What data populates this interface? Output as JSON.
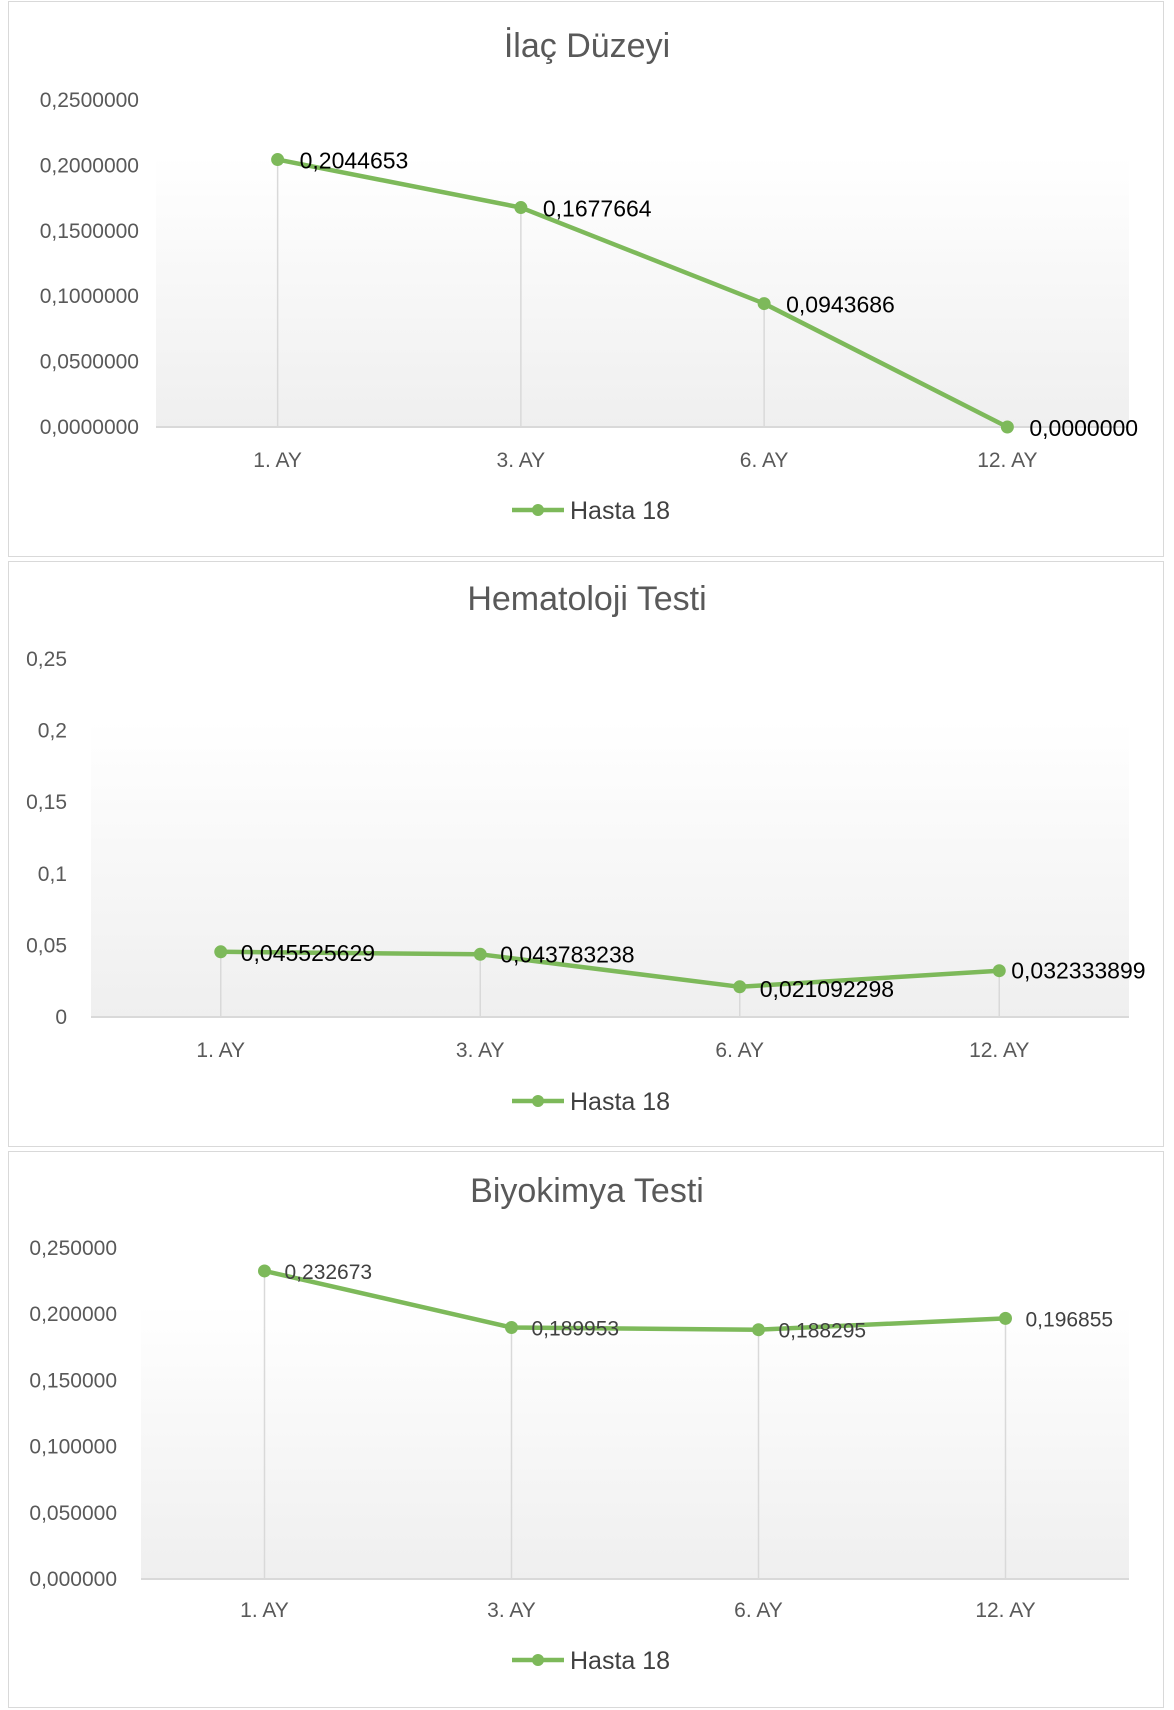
{
  "colors": {
    "series": "#7DB95A",
    "marker": "#7DB95A",
    "plot_top": "#ffffff",
    "plot_bottom": "#efefef",
    "axis": "#d9d9d9",
    "text": "#595959"
  },
  "chart_data": [
    {
      "type": "line",
      "title": "İlaç Düzeyi",
      "categories": [
        "1. AY",
        "3. AY",
        "6. AY",
        "12. AY"
      ],
      "series": [
        {
          "name": "Hasta 18",
          "values": [
            0.2044653,
            0.1677664,
            0.0943686,
            0.0
          ]
        }
      ],
      "data_labels": [
        "0,2044653",
        "0,1677664",
        "0,0943686",
        "0,0000000"
      ],
      "yticks": [
        0,
        0.05,
        0.1,
        0.15,
        0.2,
        0.25
      ],
      "ytick_labels": [
        "0,0000000",
        "0,0500000",
        "0,1000000",
        "0,1500000",
        "0,2000000",
        "0,2500000"
      ],
      "ylim": [
        0,
        0.25
      ],
      "xlabel": "",
      "ylabel": "",
      "drop_lines": true,
      "legend": "bottom"
    },
    {
      "type": "line",
      "title": "Hematoloji Testi",
      "categories": [
        "1. AY",
        "3. AY",
        "6. AY",
        "12. AY"
      ],
      "series": [
        {
          "name": "Hasta 18",
          "values": [
            0.045525629,
            0.043783238,
            0.021092298,
            0.032333899
          ]
        }
      ],
      "data_labels": [
        "0,045525629",
        "0,043783238",
        "0,021092298",
        "0,032333899"
      ],
      "yticks": [
        0,
        0.05,
        0.1,
        0.15,
        0.2,
        0.25
      ],
      "ytick_labels": [
        "0",
        "0,05",
        "0,1",
        "0,15",
        "0,2",
        "0,25"
      ],
      "ylim": [
        0,
        0.25
      ],
      "xlabel": "",
      "ylabel": "",
      "drop_lines": true,
      "legend": "bottom"
    },
    {
      "type": "line",
      "title": "Biyokimya Testi",
      "categories": [
        "1. AY",
        "3. AY",
        "6. AY",
        "12. AY"
      ],
      "series": [
        {
          "name": "Hasta 18",
          "values": [
            0.232673,
            0.189953,
            0.188295,
            0.196855
          ]
        }
      ],
      "data_labels": [
        "0,232673",
        "0,189953",
        "0,188295",
        "0,196855"
      ],
      "yticks": [
        0,
        0.05,
        0.1,
        0.15,
        0.2,
        0.25
      ],
      "ytick_labels": [
        "0,000000",
        "0,050000",
        "0,100000",
        "0,150000",
        "0,200000",
        "0,250000"
      ],
      "ylim": [
        0,
        0.25
      ],
      "xlabel": "",
      "ylabel": "",
      "drop_lines": true,
      "legend": "bottom"
    }
  ]
}
